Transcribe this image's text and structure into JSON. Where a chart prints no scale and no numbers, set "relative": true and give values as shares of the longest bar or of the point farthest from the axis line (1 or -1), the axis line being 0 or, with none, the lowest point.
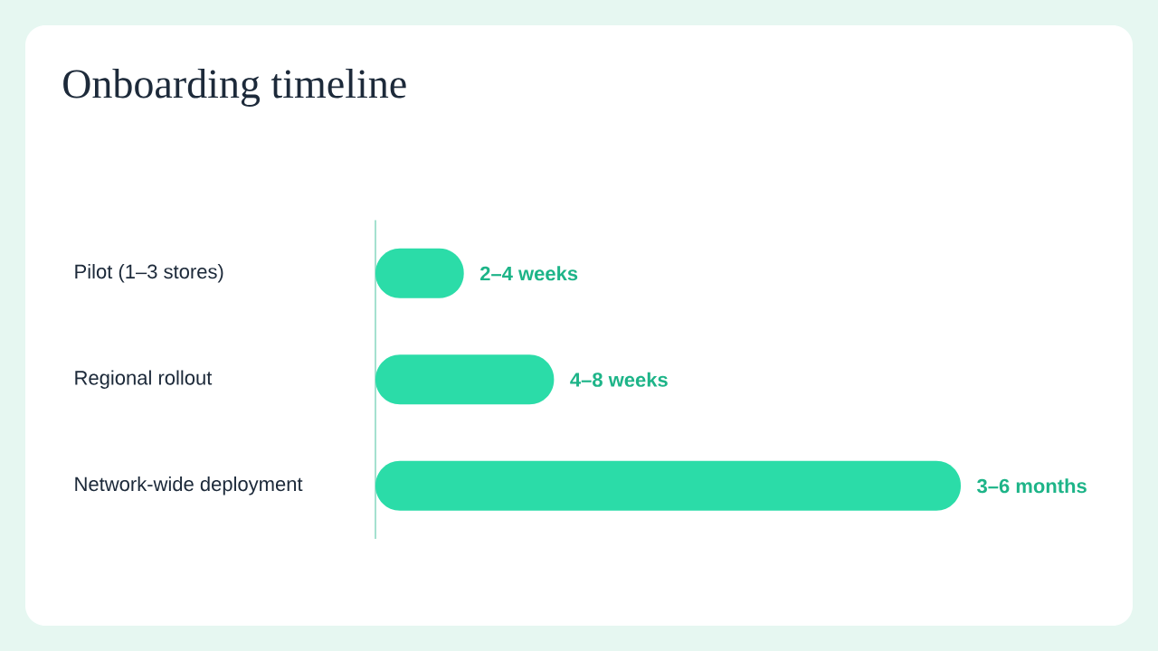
{
  "chart_data": {
    "type": "bar",
    "orientation": "horizontal",
    "relative": true,
    "title": "Onboarding timeline",
    "categories": [
      "Pilot (1–3 stores)",
      "Regional rollout",
      "Network-wide deployment"
    ],
    "values": [
      0.151,
      0.305,
      1
    ],
    "annotations": [
      {
        "text": "2–4 weeks",
        "x": 0.151,
        "y": "Pilot (1–3 stores)"
      },
      {
        "text": "4–8 weeks",
        "x": 0.305,
        "y": "Regional rollout"
      },
      {
        "text": "3–6 months",
        "x": 1,
        "y": "Network-wide deployment"
      }
    ],
    "color": "#2bdca8"
  }
}
